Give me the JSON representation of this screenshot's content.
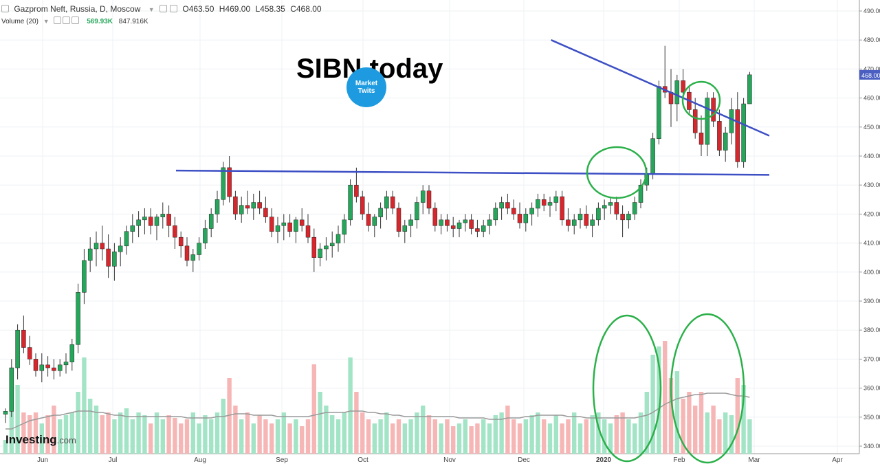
{
  "header": {
    "instrument": "Gazprom Neft, Russia, D, Moscow",
    "open": "O463.50",
    "high": "H469.00",
    "low": "L458.35",
    "close": "C468.00"
  },
  "volume_header": {
    "label": "Volume (20)",
    "value": "569.93K",
    "average": "847.916K"
  },
  "annotation_title": "SIBN today",
  "logo_text": "Market Twits",
  "brand": {
    "name": "Investing",
    "suffix": ".com"
  },
  "colors": {
    "up": "#26a65b",
    "down": "#d8262d",
    "up_vol": "#a3e4c6",
    "down_vol": "#f7b6b6",
    "trendline": "#3d4fc4",
    "circle": "#2bb04a",
    "price_label": "#4a5fc1"
  },
  "chart_data": {
    "type": "candlestick",
    "ylim": [
      338,
      492
    ],
    "yticks": [
      340,
      350,
      360,
      370,
      380,
      390,
      400,
      410,
      420,
      430,
      440,
      450,
      460,
      470,
      480,
      490
    ],
    "xticks": [
      "Jun",
      "Jul",
      "Aug",
      "Sep",
      "Oct",
      "Nov",
      "Dec",
      "2020",
      "Feb",
      "Mar",
      "Apr"
    ],
    "last_price": "468.00",
    "ohlc": [
      [
        351,
        353,
        348,
        352
      ],
      [
        352,
        370,
        350,
        367
      ],
      [
        367,
        382,
        363,
        380
      ],
      [
        380,
        385,
        372,
        374
      ],
      [
        374,
        378,
        368,
        370
      ],
      [
        370,
        372,
        364,
        366
      ],
      [
        366,
        372,
        362,
        368
      ],
      [
        368,
        371,
        364,
        367
      ],
      [
        367,
        370,
        363,
        366
      ],
      [
        366,
        370,
        364,
        368
      ],
      [
        368,
        372,
        365,
        369
      ],
      [
        369,
        377,
        366,
        375
      ],
      [
        375,
        396,
        372,
        393
      ],
      [
        393,
        408,
        389,
        404
      ],
      [
        404,
        412,
        400,
        408
      ],
      [
        408,
        414,
        402,
        410
      ],
      [
        410,
        416,
        404,
        408
      ],
      [
        408,
        413,
        398,
        402
      ],
      [
        402,
        410,
        397,
        407
      ],
      [
        407,
        412,
        402,
        409
      ],
      [
        409,
        416,
        406,
        414
      ],
      [
        414,
        420,
        410,
        416
      ],
      [
        416,
        421,
        412,
        418
      ],
      [
        418,
        422,
        413,
        419
      ],
      [
        419,
        422,
        413,
        416
      ],
      [
        416,
        420,
        411,
        419
      ],
      [
        419,
        424,
        415,
        420
      ],
      [
        420,
        423,
        412,
        416
      ],
      [
        416,
        419,
        408,
        412
      ],
      [
        412,
        414,
        405,
        409
      ],
      [
        409,
        412,
        402,
        404
      ],
      [
        404,
        408,
        400,
        406
      ],
      [
        406,
        412,
        404,
        410
      ],
      [
        410,
        418,
        408,
        415
      ],
      [
        415,
        422,
        412,
        420
      ],
      [
        420,
        428,
        417,
        425
      ],
      [
        425,
        438,
        423,
        436
      ],
      [
        436,
        440,
        424,
        426
      ],
      [
        426,
        428,
        418,
        420
      ],
      [
        420,
        426,
        417,
        423
      ],
      [
        423,
        428,
        420,
        422
      ],
      [
        422,
        427,
        418,
        424
      ],
      [
        424,
        428,
        420,
        422
      ],
      [
        422,
        426,
        417,
        419
      ],
      [
        419,
        422,
        412,
        414
      ],
      [
        414,
        419,
        410,
        416
      ],
      [
        416,
        420,
        411,
        417
      ],
      [
        417,
        420,
        412,
        414
      ],
      [
        414,
        419,
        410,
        418
      ],
      [
        418,
        422,
        414,
        416
      ],
      [
        416,
        420,
        410,
        412
      ],
      [
        412,
        415,
        400,
        405
      ],
      [
        405,
        410,
        402,
        408
      ],
      [
        408,
        412,
        404,
        409
      ],
      [
        409,
        414,
        405,
        410
      ],
      [
        410,
        416,
        407,
        413
      ],
      [
        413,
        420,
        410,
        418
      ],
      [
        418,
        432,
        416,
        430
      ],
      [
        430,
        436,
        424,
        426
      ],
      [
        426,
        428,
        418,
        420
      ],
      [
        420,
        424,
        414,
        416
      ],
      [
        416,
        420,
        412,
        419
      ],
      [
        419,
        424,
        415,
        422
      ],
      [
        422,
        428,
        418,
        426
      ],
      [
        426,
        428,
        420,
        422
      ],
      [
        422,
        424,
        412,
        414
      ],
      [
        414,
        418,
        410,
        416
      ],
      [
        416,
        420,
        412,
        418
      ],
      [
        418,
        426,
        415,
        424
      ],
      [
        424,
        430,
        420,
        428
      ],
      [
        428,
        430,
        420,
        422
      ],
      [
        422,
        424,
        414,
        416
      ],
      [
        416,
        420,
        413,
        418
      ],
      [
        418,
        420,
        414,
        416
      ],
      [
        416,
        419,
        412,
        415
      ],
      [
        415,
        418,
        412,
        417
      ],
      [
        417,
        420,
        414,
        418
      ],
      [
        418,
        420,
        413,
        415
      ],
      [
        415,
        418,
        412,
        414
      ],
      [
        414,
        418,
        412,
        416
      ],
      [
        416,
        420,
        413,
        418
      ],
      [
        418,
        424,
        416,
        422
      ],
      [
        422,
        426,
        418,
        424
      ],
      [
        424,
        427,
        420,
        422
      ],
      [
        422,
        425,
        418,
        420
      ],
      [
        420,
        424,
        415,
        417
      ],
      [
        417,
        422,
        414,
        420
      ],
      [
        420,
        424,
        416,
        422
      ],
      [
        422,
        427,
        419,
        425
      ],
      [
        425,
        427,
        421,
        423
      ],
      [
        423,
        426,
        419,
        424
      ],
      [
        424,
        428,
        421,
        426
      ],
      [
        426,
        428,
        416,
        418
      ],
      [
        418,
        422,
        414,
        416
      ],
      [
        416,
        420,
        413,
        418
      ],
      [
        418,
        422,
        415,
        420
      ],
      [
        420,
        423,
        415,
        416
      ],
      [
        416,
        420,
        412,
        418
      ],
      [
        418,
        424,
        416,
        422
      ],
      [
        422,
        425,
        418,
        423
      ],
      [
        423,
        426,
        420,
        424
      ],
      [
        424,
        426,
        418,
        420
      ],
      [
        420,
        423,
        412,
        418
      ],
      [
        418,
        421,
        415,
        420
      ],
      [
        420,
        426,
        418,
        424
      ],
      [
        424,
        432,
        422,
        430
      ],
      [
        430,
        436,
        428,
        434
      ],
      [
        434,
        448,
        432,
        446
      ],
      [
        446,
        466,
        444,
        464
      ],
      [
        464,
        478,
        460,
        462
      ],
      [
        462,
        470,
        450,
        458
      ],
      [
        458,
        468,
        452,
        466
      ],
      [
        466,
        470,
        460,
        462
      ],
      [
        462,
        464,
        454,
        456
      ],
      [
        456,
        460,
        446,
        448
      ],
      [
        448,
        454,
        440,
        444
      ],
      [
        444,
        462,
        440,
        460
      ],
      [
        460,
        462,
        450,
        452
      ],
      [
        452,
        456,
        440,
        442
      ],
      [
        442,
        450,
        438,
        448
      ],
      [
        448,
        460,
        444,
        456
      ],
      [
        456,
        462,
        436,
        438
      ],
      [
        438,
        460,
        436,
        458
      ],
      [
        458,
        469,
        458,
        468
      ]
    ],
    "volume": [
      0.1,
      0.35,
      0.5,
      0.3,
      0.28,
      0.3,
      0.22,
      0.28,
      0.35,
      0.25,
      0.28,
      0.3,
      0.45,
      0.7,
      0.4,
      0.35,
      0.28,
      0.3,
      0.25,
      0.3,
      0.33,
      0.25,
      0.3,
      0.28,
      0.22,
      0.3,
      0.25,
      0.28,
      0.26,
      0.22,
      0.25,
      0.3,
      0.22,
      0.28,
      0.25,
      0.3,
      0.4,
      0.55,
      0.35,
      0.25,
      0.3,
      0.22,
      0.28,
      0.25,
      0.22,
      0.25,
      0.3,
      0.22,
      0.25,
      0.2,
      0.25,
      0.65,
      0.45,
      0.35,
      0.28,
      0.25,
      0.3,
      0.7,
      0.45,
      0.3,
      0.25,
      0.22,
      0.25,
      0.3,
      0.22,
      0.25,
      0.22,
      0.25,
      0.3,
      0.35,
      0.28,
      0.25,
      0.22,
      0.25,
      0.2,
      0.22,
      0.25,
      0.2,
      0.22,
      0.25,
      0.22,
      0.28,
      0.3,
      0.35,
      0.25,
      0.22,
      0.25,
      0.28,
      0.3,
      0.25,
      0.22,
      0.28,
      0.22,
      0.25,
      0.3,
      0.22,
      0.25,
      0.28,
      0.3,
      0.25,
      0.22,
      0.28,
      0.3,
      0.25,
      0.22,
      0.3,
      0.45,
      0.72,
      0.78,
      0.82,
      0.55,
      0.6,
      0.4,
      0.45,
      0.35,
      0.45,
      0.3,
      0.35,
      0.25,
      0.3,
      0.28,
      0.55,
      0.5,
      0.25
    ],
    "volume_ma": [
      0.18,
      0.18,
      0.2,
      0.22,
      0.24,
      0.25,
      0.26,
      0.27,
      0.28,
      0.28,
      0.29,
      0.3,
      0.31,
      0.31,
      0.31,
      0.3,
      0.3,
      0.29,
      0.28,
      0.28,
      0.27,
      0.27,
      0.27,
      0.27,
      0.27,
      0.27,
      0.27,
      0.27,
      0.27,
      0.27,
      0.26,
      0.26,
      0.26,
      0.26,
      0.26,
      0.27,
      0.27,
      0.28,
      0.29,
      0.29,
      0.29,
      0.28,
      0.28,
      0.28,
      0.28,
      0.27,
      0.27,
      0.27,
      0.27,
      0.27,
      0.27,
      0.28,
      0.29,
      0.3,
      0.3,
      0.3,
      0.3,
      0.31,
      0.31,
      0.31,
      0.3,
      0.3,
      0.29,
      0.29,
      0.28,
      0.28,
      0.27,
      0.27,
      0.27,
      0.27,
      0.27,
      0.27,
      0.27,
      0.27,
      0.27,
      0.26,
      0.26,
      0.26,
      0.26,
      0.26,
      0.25,
      0.25,
      0.25,
      0.26,
      0.26,
      0.26,
      0.27,
      0.27,
      0.28,
      0.28,
      0.28,
      0.28,
      0.28,
      0.27,
      0.27,
      0.27,
      0.26,
      0.26,
      0.26,
      0.26,
      0.26,
      0.26,
      0.26,
      0.26,
      0.26,
      0.27,
      0.28,
      0.3,
      0.33,
      0.36,
      0.38,
      0.4,
      0.41,
      0.42,
      0.43,
      0.43,
      0.44,
      0.44,
      0.44,
      0.44,
      0.43,
      0.42,
      0.42,
      0.41
    ],
    "trendlines": [
      {
        "from": [
          20,
          435
        ],
        "to": [
          100,
          433.5
        ]
      },
      {
        "from": [
          82,
          480
        ],
        "to": [
          100,
          447
        ]
      }
    ],
    "circles": [
      {
        "cx": 78,
        "cy": 434,
        "rx": 4,
        "ry": 9
      },
      {
        "cx": 96,
        "cy": 459,
        "rx": 2.5,
        "ry": 7
      }
    ]
  }
}
